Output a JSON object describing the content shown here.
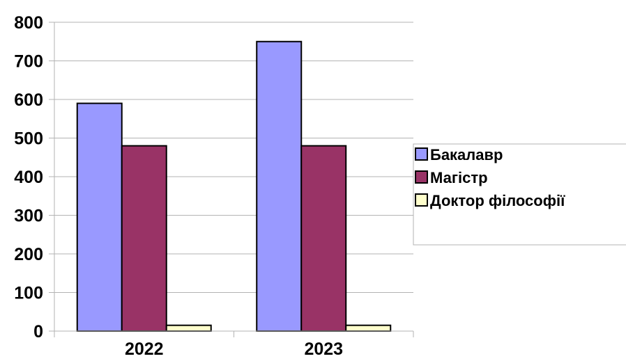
{
  "chart_data": {
    "type": "bar",
    "title": "",
    "xlabel": "",
    "ylabel": "",
    "categories": [
      "2022",
      "2023"
    ],
    "series": [
      {
        "name": "Бакалавр",
        "values": [
          590,
          750
        ],
        "color": "#9999ff"
      },
      {
        "name": "Магістр",
        "values": [
          480,
          480
        ],
        "color": "#993366"
      },
      {
        "name": "Доктор філософії",
        "values": [
          15,
          15
        ],
        "color": "#ffffcc"
      }
    ],
    "ylim": [
      0,
      800
    ],
    "yticks": [
      0,
      100,
      200,
      300,
      400,
      500,
      600,
      700,
      800
    ],
    "grid": true,
    "legend_position": "right"
  }
}
